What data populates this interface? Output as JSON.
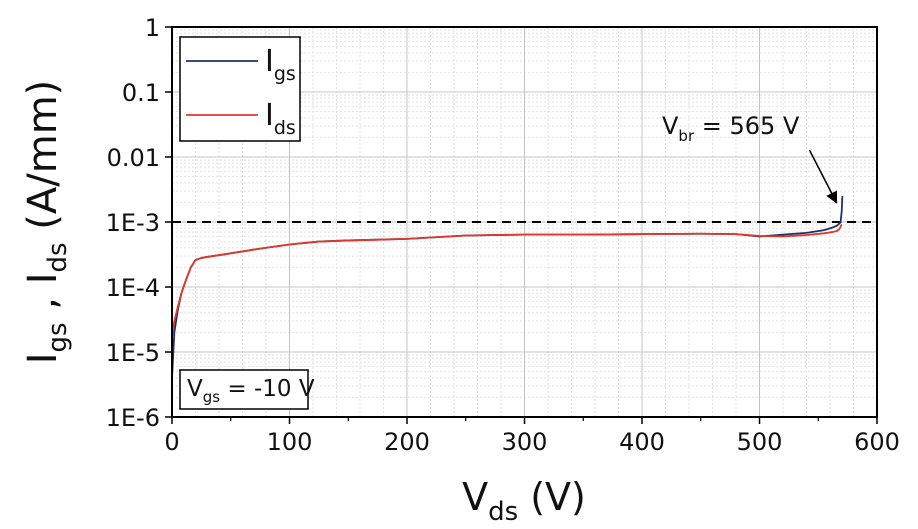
{
  "chart_data": {
    "type": "line",
    "xlabel": {
      "main": "V",
      "sub": "ds",
      "unit": " (V)"
    },
    "ylabel": {
      "p1": "I",
      "s1": "gs",
      "mid": " , I",
      "s2": "ds",
      "unit": " (A/mm)"
    },
    "xlim": [
      0,
      600
    ],
    "ylim": [
      1e-06,
      1
    ],
    "yscale": "log",
    "grid": true,
    "x_ticks": [
      "0",
      "100",
      "200",
      "300",
      "400",
      "500",
      "600"
    ],
    "x_tick_values": [
      0,
      100,
      200,
      300,
      400,
      500,
      600
    ],
    "y_ticks": [
      "1E-6",
      "1E-5",
      "1E-4",
      "1E-3",
      "0.01",
      "0.1",
      "1"
    ],
    "y_tick_values": [
      1e-06,
      1e-05,
      0.0001,
      0.001,
      0.01,
      0.1,
      1
    ],
    "legend_position": "top-left",
    "series": [
      {
        "name": "I",
        "name_sub": "gs",
        "color": "#1f2f6e",
        "x": [
          0,
          2,
          5,
          8,
          12,
          16,
          20,
          25,
          30,
          50,
          75,
          100,
          125,
          150,
          200,
          250,
          300,
          350,
          400,
          450,
          480,
          500,
          520,
          540,
          555,
          562,
          566,
          568,
          569,
          570,
          570.5
        ],
        "y": [
          4e-06,
          2e-05,
          4.5e-05,
          8e-05,
          0.00013,
          0.0002,
          0.00026,
          0.00028,
          0.00029,
          0.00033,
          0.00039,
          0.00045,
          0.0005,
          0.00052,
          0.00055,
          0.00062,
          0.00064,
          0.00064,
          0.00065,
          0.00066,
          0.00065,
          0.0006,
          0.00064,
          0.00068,
          0.00075,
          0.00082,
          0.00088,
          0.00095,
          0.00098,
          0.0015,
          0.0025
        ]
      },
      {
        "name": "I",
        "name_sub": "ds",
        "color": "#e0392b",
        "x": [
          0,
          2,
          5,
          8,
          12,
          16,
          20,
          25,
          30,
          50,
          75,
          100,
          125,
          150,
          200,
          250,
          300,
          350,
          400,
          450,
          480,
          500,
          520,
          540,
          555,
          562,
          566,
          568,
          570
        ],
        "y": [
          1.6e-05,
          3e-05,
          5e-05,
          8e-05,
          0.00013,
          0.0002,
          0.00026,
          0.00028,
          0.00029,
          0.00033,
          0.00039,
          0.00045,
          0.0005,
          0.00052,
          0.00055,
          0.00062,
          0.00064,
          0.00064,
          0.00065,
          0.00066,
          0.00065,
          0.00061,
          0.0006,
          0.00063,
          0.00067,
          0.0007,
          0.00073,
          0.00078,
          0.00092
        ]
      }
    ],
    "reference_line": {
      "y": 0.001,
      "style": "dashed",
      "color": "#000000"
    },
    "annotations": [
      {
        "p": "V",
        "sub": "br",
        "rest": " = 565 V",
        "arrow_to": {
          "x": 569,
          "y": 0.0016
        },
        "arrow_from": {
          "x": 500,
          "y": 0.0075
        }
      },
      {
        "p": "V",
        "sub": "gs",
        "rest": " = -10 V"
      }
    ]
  }
}
